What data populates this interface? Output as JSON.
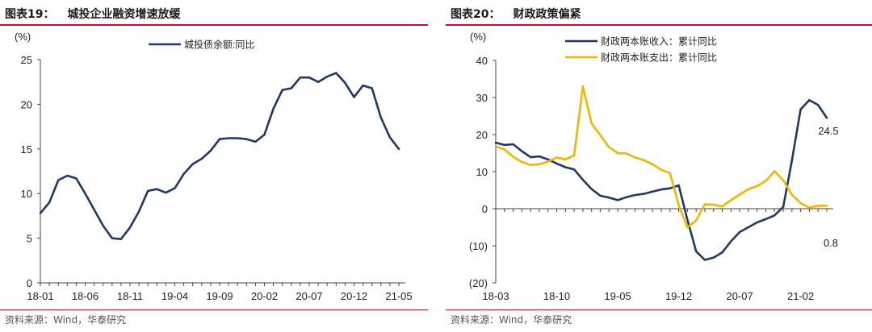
{
  "chart_data": [
    {
      "type": "line",
      "title_prefix": "图表19：",
      "title": "城投企业融资增速放缓",
      "unit_label": "(%)",
      "ylim": [
        0,
        25
      ],
      "yticks": [
        0,
        5,
        10,
        15,
        20,
        25
      ],
      "xtick_labels": [
        "18-01",
        "18-06",
        "18-11",
        "19-04",
        "19-09",
        "20-02",
        "20-07",
        "20-12",
        "21-05"
      ],
      "legend_position": "top-center",
      "grid": false,
      "x": [
        "18-01",
        "18-02",
        "18-03",
        "18-04",
        "18-05",
        "18-06",
        "18-07",
        "18-08",
        "18-09",
        "18-10",
        "18-11",
        "18-12",
        "19-01",
        "19-02",
        "19-03",
        "19-04",
        "19-05",
        "19-06",
        "19-07",
        "19-08",
        "19-09",
        "19-10",
        "19-11",
        "19-12",
        "20-01",
        "20-02",
        "20-03",
        "20-04",
        "20-05",
        "20-06",
        "20-07",
        "20-08",
        "20-09",
        "20-10",
        "20-11",
        "20-12",
        "21-01",
        "21-02",
        "21-03",
        "21-04",
        "21-05"
      ],
      "series": [
        {
          "name": "城投债余额:同比",
          "color": "#1f3864",
          "values": [
            7.8,
            9.0,
            11.5,
            12.0,
            11.7,
            10.0,
            8.2,
            6.4,
            5.0,
            4.9,
            6.2,
            8.0,
            10.3,
            10.5,
            10.1,
            10.6,
            12.2,
            13.3,
            13.9,
            14.8,
            16.1,
            16.2,
            16.2,
            16.1,
            15.8,
            16.6,
            19.5,
            21.6,
            21.8,
            23.0,
            23.0,
            22.5,
            23.1,
            23.5,
            22.4,
            20.8,
            22.1,
            21.8,
            18.5,
            16.3,
            15.0
          ]
        }
      ],
      "source": "资料来源：Wind，华泰研究"
    },
    {
      "type": "line",
      "title_prefix": "图表20：",
      "title": "财政政策偏紧",
      "unit_label": "(%)",
      "ylim": [
        -20,
        40
      ],
      "yticks": [
        -20,
        -10,
        0,
        10,
        20,
        30,
        40
      ],
      "ytick_labels": [
        "(20)",
        "(10)",
        "0",
        "10",
        "20",
        "30",
        "40"
      ],
      "xtick_labels": [
        "18-03",
        "18-10",
        "19-05",
        "19-12",
        "20-07",
        "21-02"
      ],
      "legend_position": "top-center",
      "grid": false,
      "x": [
        "18-03",
        "18-04",
        "18-05",
        "18-06",
        "18-07",
        "18-08",
        "18-09",
        "18-10",
        "18-11",
        "18-12",
        "19-01",
        "19-02",
        "19-03",
        "19-04",
        "19-05",
        "19-06",
        "19-07",
        "19-08",
        "19-09",
        "19-10",
        "19-11",
        "19-12",
        "20-01",
        "20-02",
        "20-03",
        "20-04",
        "20-05",
        "20-06",
        "20-07",
        "20-08",
        "20-09",
        "20-10",
        "20-11",
        "20-12",
        "21-01",
        "21-02",
        "21-03",
        "21-04",
        "21-05"
      ],
      "series": [
        {
          "name": "财政两本账收入：累计同比",
          "color": "#1f3864",
          "values": [
            17.8,
            17.2,
            17.4,
            15.5,
            13.9,
            14.1,
            13.3,
            12.2,
            11.2,
            10.6,
            7.8,
            5.3,
            3.5,
            3.0,
            2.3,
            3.1,
            3.7,
            4.0,
            4.6,
            5.2,
            5.5,
            6.3,
            -3.0,
            -11.5,
            -13.8,
            -13.2,
            -11.8,
            -8.8,
            -6.3,
            -5.0,
            -3.7,
            -2.8,
            -1.8,
            0.5,
            13.0,
            26.8,
            29.3,
            28.0,
            24.5
          ]
        },
        {
          "name": "财政两本账支出：累计同比",
          "color": "#f4b400",
          "values": [
            16.8,
            16.0,
            14.0,
            12.6,
            11.8,
            12.0,
            12.7,
            13.8,
            13.3,
            14.4,
            33.0,
            23.0,
            19.8,
            16.6,
            15.0,
            14.9,
            13.8,
            13.1,
            12.0,
            10.5,
            9.6,
            1.0,
            -5.0,
            -3.2,
            1.2,
            1.1,
            0.6,
            2.3,
            3.8,
            5.3,
            6.1,
            7.5,
            10.1,
            7.7,
            3.8,
            1.5,
            0.3,
            0.8,
            0.8
          ]
        }
      ],
      "annotations": [
        "24.5",
        "0.8"
      ],
      "source": "资料来源：Wind，华泰研究"
    }
  ]
}
